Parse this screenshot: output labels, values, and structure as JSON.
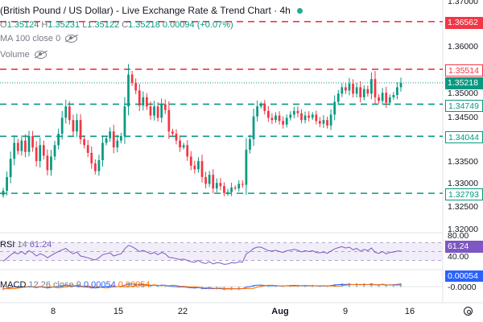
{
  "header": {
    "title": "(British Pound / US Dollar) - Live Exchange Rate & Trend Chart · 4h",
    "ohlc": {
      "o_label": "O",
      "o": "1.35124",
      "h_label": "H",
      "h": "1.35231",
      "l_label": "L",
      "l": "1.35122",
      "c_label": "C",
      "c": "1.35218",
      "change": "0.00094 (+0.07%)"
    },
    "ma_label": "MA 100 close 0",
    "volume_label": "Volume"
  },
  "icons": {
    "status": "green-dot-icon",
    "eye": "eye-icon",
    "eye_off": "eye-off-icon",
    "settings": "settings-icon"
  },
  "colors": {
    "up": "#089981",
    "down": "#f23645",
    "resistance": "#f23645",
    "support": "#089981",
    "rsi_line": "#7e57c2",
    "rsi_band": "#ede7f6",
    "macd_line": "#2962ff",
    "signal_line": "#ff6d00",
    "last_price_tag": "#089981"
  },
  "price_labels": [
    {
      "id": "res-1",
      "text": "1.36562",
      "kind": "resistance"
    },
    {
      "id": "res-2",
      "text": "1.35514",
      "kind": "resistance"
    },
    {
      "id": "last",
      "text": "1.35218",
      "kind": "last"
    },
    {
      "id": "sup-1",
      "text": "1.34749",
      "kind": "support"
    },
    {
      "id": "sup-2",
      "text": "1.34044",
      "kind": "support"
    },
    {
      "id": "sup-3",
      "text": "1.32793",
      "kind": "support"
    }
  ],
  "axis_ticks": [
    "1.37000",
    "1.36000",
    "1.35000",
    "1.34500",
    "1.33500",
    "1.33000",
    "1.32500",
    "1.32000"
  ],
  "rsi": {
    "label": "RSI",
    "period": "14",
    "value": "61.24",
    "upper": "80.00",
    "lower": "40.00"
  },
  "macd": {
    "label": "MACD",
    "params": "12 26 close 9",
    "v1": "0.00054",
    "v2": "0.00054",
    "tag_top": "0.00054",
    "tag_bottom": "-0.0000"
  },
  "x_axis": [
    "8",
    "15",
    "22",
    "Aug",
    "9",
    "16"
  ],
  "chart_data": {
    "type": "candlestick",
    "title": "(British Pound / US Dollar) - Live Exchange Rate & Trend Chart · 4h",
    "ylim": [
      1.32,
      1.37
    ],
    "x_ticks": [
      "8",
      "15",
      "22",
      "Aug",
      "9",
      "16"
    ],
    "horizontal_levels": [
      {
        "value": 1.36562,
        "style": "dashed",
        "color": "red"
      },
      {
        "value": 1.35514,
        "style": "dashed",
        "color": "red"
      },
      {
        "value": 1.34749,
        "style": "dashed",
        "color": "green"
      },
      {
        "value": 1.34044,
        "style": "dashed",
        "color": "green"
      },
      {
        "value": 1.32793,
        "style": "dashed",
        "color": "green"
      }
    ],
    "last_price": 1.35218,
    "close_path": [
      1.3285,
      1.3315,
      1.3355,
      1.339,
      1.3372,
      1.3395,
      1.337,
      1.3405,
      1.338,
      1.335,
      1.3385,
      1.3362,
      1.333,
      1.336,
      1.3385,
      1.341,
      1.3445,
      1.347,
      1.344,
      1.3415,
      1.344,
      1.3398,
      1.3385,
      1.3368,
      1.3345,
      1.3328,
      1.3352,
      1.339,
      1.34,
      1.3415,
      1.338,
      1.3395,
      1.3405,
      1.347,
      1.354,
      1.3522,
      1.3505,
      1.3472,
      1.349,
      1.347,
      1.345,
      1.347,
      1.3445,
      1.3475,
      1.3462,
      1.3415,
      1.341,
      1.3395,
      1.338,
      1.3385,
      1.336,
      1.334,
      1.3332,
      1.335,
      1.3315,
      1.33,
      1.332,
      1.329,
      1.3302,
      1.3295,
      1.328,
      1.3282,
      1.3292,
      1.329,
      1.33,
      1.3298,
      1.3375,
      1.3398,
      1.3448,
      1.347,
      1.3475,
      1.346,
      1.3445,
      1.344,
      1.345,
      1.3438,
      1.343,
      1.3445,
      1.3452,
      1.346,
      1.3455,
      1.344,
      1.345,
      1.3445,
      1.3452,
      1.3438,
      1.3432,
      1.344,
      1.3428,
      1.3452,
      1.348,
      1.3498,
      1.3512,
      1.3505,
      1.352,
      1.3498,
      1.3512,
      1.349,
      1.3508,
      1.3498,
      1.353,
      1.349,
      1.3482,
      1.35,
      1.3478,
      1.349,
      1.3495,
      1.3512,
      1.3522
    ],
    "rsi_series": [
      38,
      45,
      52,
      58,
      55,
      60,
      54,
      62,
      57,
      50,
      55,
      52,
      46,
      51,
      56,
      60,
      64,
      67,
      60,
      55,
      59,
      50,
      48,
      46,
      43,
      41,
      46,
      53,
      55,
      57,
      50,
      53,
      55,
      66,
      74,
      71,
      66,
      60,
      63,
      59,
      55,
      58,
      53,
      58,
      55,
      47,
      46,
      44,
      42,
      43,
      40,
      37,
      36,
      40,
      35,
      33,
      37,
      32,
      35,
      34,
      31,
      32,
      35,
      34,
      37,
      36,
      55,
      60,
      67,
      70,
      70,
      66,
      62,
      61,
      63,
      60,
      58,
      62,
      63,
      65,
      63,
      59,
      62,
      60,
      62,
      58,
      57,
      59,
      56,
      61,
      66,
      69,
      71,
      68,
      70,
      64,
      67,
      61,
      65,
      62,
      68,
      58,
      56,
      60,
      55,
      58,
      59,
      61,
      61.24
    ],
    "rsi_levels": [
      80,
      40
    ],
    "macd_value": 0.00054
  }
}
